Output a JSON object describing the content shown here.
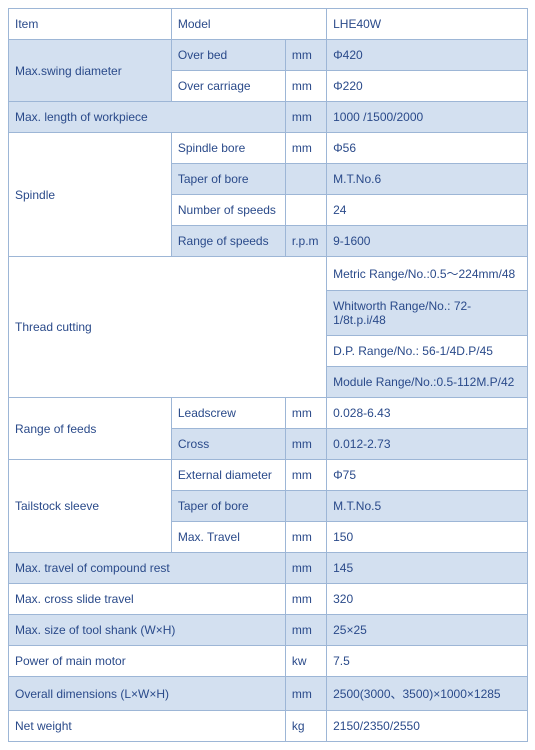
{
  "colors": {
    "border": "#9db6d6",
    "text": "#2a4a8a",
    "alt_row_bg": "#d3e0f0",
    "bg": "#ffffff"
  },
  "fontsize": 12,
  "header": {
    "item": "Item",
    "model": "Model",
    "value": "LHE40W"
  },
  "swing": {
    "label": "Max.swing diameter",
    "r1_sub": "Over bed",
    "r1_unit": "mm",
    "r1_val": "Φ420",
    "r2_sub": "Over carriage",
    "r2_unit": "mm",
    "r2_val": "Φ220"
  },
  "maxlen": {
    "label": "Max. length of workpiece",
    "unit": "mm",
    "val": "1000 /1500/2000"
  },
  "spindle": {
    "label": "Spindle",
    "r1_sub": "Spindle bore",
    "r1_unit": "mm",
    "r1_val": "Φ56",
    "r2_sub": "Taper of bore",
    "r2_unit": "",
    "r2_val": "M.T.No.6",
    "r3_sub": "Number of speeds",
    "r3_unit": "",
    "r3_val": "24",
    "r4_sub": "Range of speeds",
    "r4_unit": "r.p.m",
    "r4_val": "9-1600"
  },
  "thread": {
    "label": "Thread cutting",
    "v1": "Metric Range/No.:0.5～224mm/48",
    "v2": "Whitworth Range/No.: 72-1/8t.p.i/48",
    "v3": "D.P. Range/No.: 56-1/4D.P/45",
    "v4": "Module Range/No.:0.5-112M.P/42"
  },
  "feeds": {
    "label": "Range of feeds",
    "r1_sub": "Leadscrew",
    "r1_unit": "mm",
    "r1_val": "0.028-6.43",
    "r2_sub": "Cross",
    "r2_unit": "mm",
    "r2_val": "0.012-2.73"
  },
  "tailstock": {
    "label": "Tailstock sleeve",
    "r1_sub": "External diameter",
    "r1_unit": "mm",
    "r1_val": "Φ75",
    "r2_sub": "Taper of bore",
    "r2_unit": "",
    "r2_val": "M.T.No.5",
    "r3_sub": "Max. Travel",
    "r3_unit": "mm",
    "r3_val": "150"
  },
  "compound": {
    "label": "Max. travel of compound rest",
    "unit": "mm",
    "val": "145"
  },
  "cross": {
    "label": "Max. cross slide travel",
    "unit": "mm",
    "val": "320"
  },
  "tool": {
    "label": "Max. size of tool shank (W×H)",
    "unit": "mm",
    "val": "25×25"
  },
  "motor": {
    "label": "Power of main motor",
    "unit": "kw",
    "val": "7.5"
  },
  "dims": {
    "label": "Overall dimensions (L×W×H)",
    "unit": "mm",
    "val": "2500(3000、3500)×1000×1285"
  },
  "weight": {
    "label": "Net weight",
    "unit": "kg",
    "val": "2150/2350/2550"
  }
}
